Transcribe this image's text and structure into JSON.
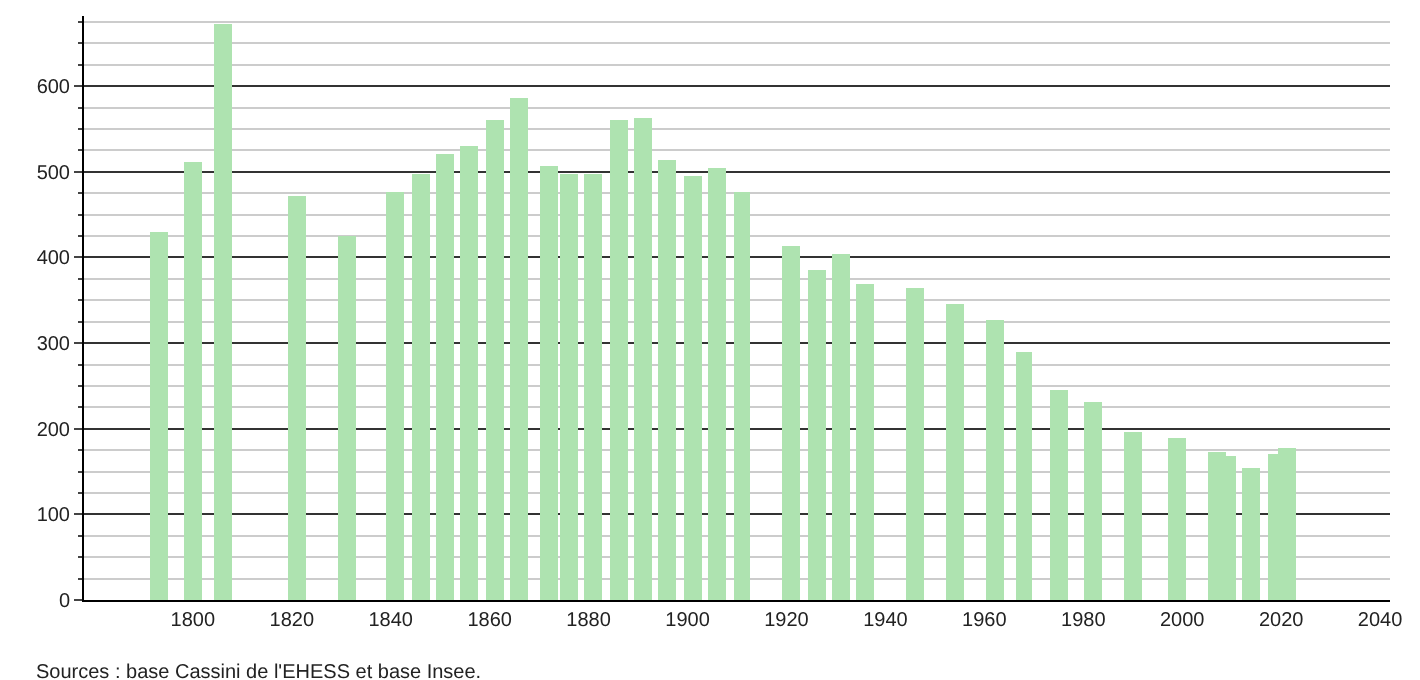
{
  "chart_data": {
    "type": "bar",
    "color": "#aee3b0",
    "x": [
      1793,
      1800,
      1806,
      1821,
      1831,
      1841,
      1846,
      1851,
      1856,
      1861,
      1866,
      1872,
      1876,
      1881,
      1886,
      1891,
      1896,
      1901,
      1906,
      1911,
      1921,
      1926,
      1931,
      1936,
      1946,
      1954,
      1962,
      1968,
      1975,
      1982,
      1990,
      1999,
      2007,
      2009,
      2014,
      2019,
      2021
    ],
    "values": [
      430,
      511,
      672,
      472,
      426,
      476,
      497,
      520,
      530,
      560,
      586,
      507,
      498,
      498,
      560,
      563,
      514,
      495,
      504,
      476,
      414,
      385,
      404,
      369,
      364,
      346,
      327,
      290,
      245,
      231,
      196,
      189,
      173,
      168,
      154,
      171,
      178
    ],
    "xlim": [
      1778,
      2042
    ],
    "xticks": [
      1800,
      1820,
      1840,
      1860,
      1880,
      1900,
      1920,
      1940,
      1960,
      1980,
      2000,
      2020,
      2040
    ],
    "ylim": [
      0,
      682
    ],
    "yticks": [
      0,
      {
        "value": 25,
        "label": null
      },
      {
        "value": 50,
        "label": null
      },
      {
        "value": 75,
        "label": null
      },
      100,
      {
        "value": 125,
        "label": null
      },
      {
        "value": 150,
        "label": null
      },
      {
        "value": 175,
        "label": null
      },
      200,
      {
        "value": 225,
        "label": null
      },
      {
        "value": 250,
        "label": null
      },
      {
        "value": 275,
        "label": null
      },
      300,
      {
        "value": 325,
        "label": null
      },
      {
        "value": 350,
        "label": null
      },
      {
        "value": 375,
        "label": null
      },
      400,
      {
        "value": 425,
        "label": null
      },
      {
        "value": 450,
        "label": null
      },
      {
        "value": 475,
        "label": null
      },
      500,
      {
        "value": 525,
        "label": null
      },
      {
        "value": 550,
        "label": null
      },
      {
        "value": 575,
        "label": null
      },
      600,
      {
        "value": 625,
        "label": null
      },
      {
        "value": 650,
        "label": null
      },
      {
        "value": 675,
        "label": null
      }
    ],
    "grid": "y",
    "annotations": [
      "Sources : base Cassini de l'EHESS et base Insee."
    ]
  }
}
